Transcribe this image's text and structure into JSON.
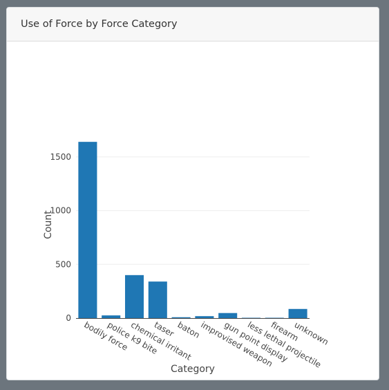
{
  "card": {
    "title": "Use of Force by Force Category"
  },
  "colors": {
    "bar": "#1f77b4",
    "grid": "#eeeeee",
    "axis_line": "#444444",
    "tick_text": "#444444",
    "background": "#6c757d"
  },
  "chart_data": {
    "type": "bar",
    "title": "",
    "xlabel": "Category",
    "ylabel": "Count",
    "categories": [
      "bodily force",
      "police k9 bite",
      "chemical irritant",
      "taser",
      "baton",
      "improvised weapon",
      "gun point display",
      "less lethal projectile",
      "firearm",
      "unknown"
    ],
    "values": [
      1640,
      25,
      400,
      340,
      8,
      18,
      47,
      3,
      3,
      85
    ],
    "ylim": [
      0,
      1700
    ],
    "yticks": [
      0,
      500,
      1000,
      1500
    ],
    "grid": true,
    "legend": "none"
  }
}
